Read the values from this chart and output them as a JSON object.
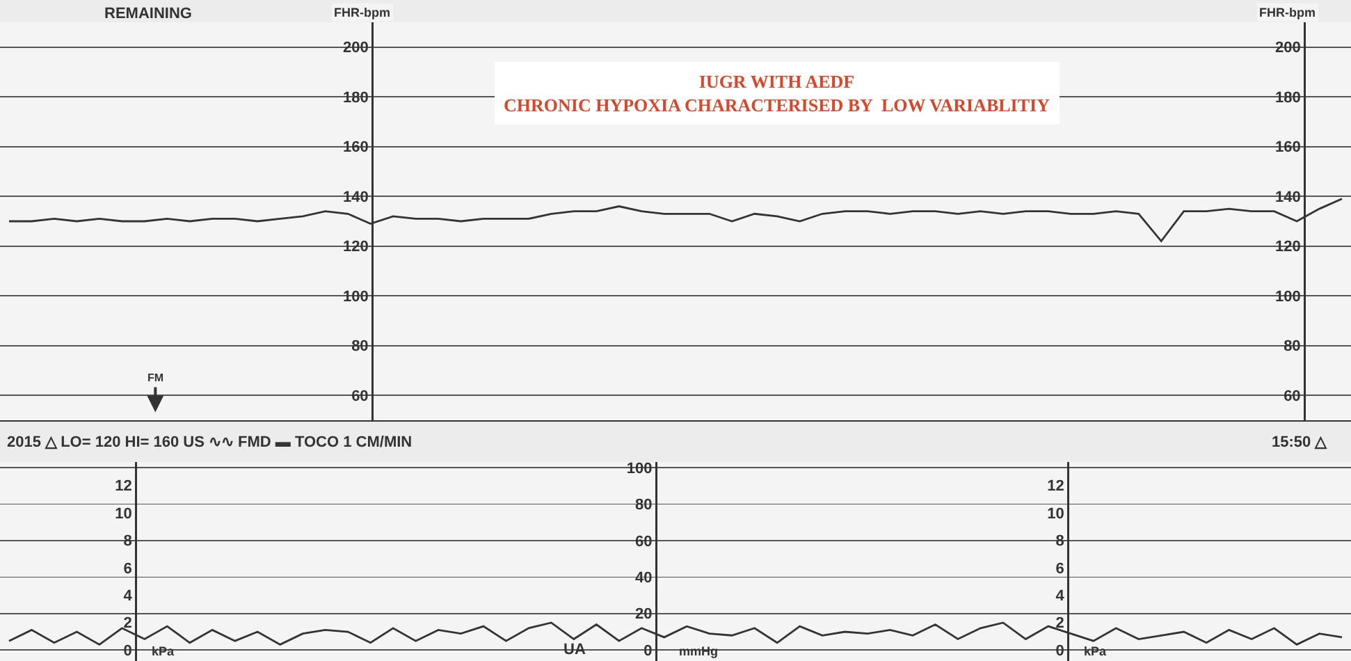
{
  "chart_data": [
    {
      "type": "line",
      "title": "IUGR WITH AEDF",
      "subtitle": "CHRONIC HYPOXIA CHARACTERISED BY  LOW VARIABLITIY",
      "ylabel": "FHR-bpm",
      "y2label": "FHR-bpm",
      "annotations": [
        "REMAINING",
        "FM"
      ],
      "categories": [
        null,
        null,
        null,
        null,
        null,
        null,
        null,
        null,
        null,
        null,
        null,
        null,
        null,
        null,
        null,
        null,
        null,
        null,
        null,
        null,
        null,
        null,
        null,
        null,
        null,
        null,
        null,
        null,
        null,
        null,
        null,
        null,
        null,
        null,
        null,
        null,
        null,
        null,
        null,
        null,
        null,
        null,
        null,
        null,
        null,
        null,
        null,
        null,
        null,
        null,
        null,
        null,
        null,
        null,
        null,
        null,
        null,
        null,
        null,
        null
      ],
      "series": [
        {
          "color": "#333333",
          "values": [
            130,
            130,
            131,
            130,
            131,
            130,
            130,
            131,
            130,
            131,
            131,
            130,
            131,
            132,
            134,
            133,
            129,
            132,
            131,
            131,
            130,
            131,
            131,
            131,
            133,
            134,
            134,
            136,
            134,
            133,
            133,
            133,
            130,
            133,
            132,
            130,
            133,
            134,
            134,
            133,
            134,
            134,
            133,
            134,
            133,
            134,
            134,
            133,
            133,
            134,
            133,
            122,
            134,
            134,
            135,
            134,
            134,
            130,
            135,
            139
          ]
        }
      ],
      "ylim": [
        50,
        210
      ],
      "yticks": [
        60,
        80,
        100,
        120,
        140,
        160,
        180,
        200
      ],
      "y2lim": [
        50,
        210
      ],
      "y2ticks": [
        60,
        80,
        100,
        120,
        140,
        160,
        180,
        200
      ],
      "grid": "y",
      "marker": "none",
      "line_style": "solid"
    },
    {
      "type": "line",
      "ylabel": "mmHg",
      "y2label": "kPa",
      "y3label": "kPa",
      "annotations": [
        "2015 △ LO= 120 HI= 160 US ∿∿ FMD ▬ TOCO 1 CM/MIN",
        "15:50 △",
        "UA"
      ],
      "categories": [
        null,
        null,
        null,
        null,
        null,
        null,
        null,
        null,
        null,
        null,
        null,
        null,
        null,
        null,
        null,
        null,
        null,
        null,
        null,
        null,
        null,
        null,
        null,
        null,
        null,
        null,
        null,
        null,
        null,
        null,
        null,
        null,
        null,
        null,
        null,
        null,
        null,
        null,
        null,
        null,
        null,
        null,
        null,
        null,
        null,
        null,
        null,
        null,
        null,
        null,
        null,
        null,
        null,
        null,
        null,
        null,
        null,
        null,
        null,
        null
      ],
      "series": [
        {
          "color": "#333333",
          "values": [
            5,
            11,
            4,
            10,
            3,
            12,
            6,
            13,
            4,
            11,
            5,
            10,
            3,
            9,
            11,
            10,
            4,
            12,
            5,
            11,
            9,
            13,
            5,
            12,
            15,
            6,
            14,
            5,
            12,
            7,
            13,
            9,
            8,
            12,
            4,
            13,
            8,
            10,
            9,
            11,
            8,
            14,
            6,
            12,
            15,
            6,
            13,
            9,
            5,
            12,
            6,
            8,
            10,
            4,
            11,
            6,
            12,
            3,
            9,
            7
          ]
        }
      ],
      "ylim": [
        -6,
        103
      ],
      "yticks": [
        0,
        20,
        40,
        60,
        80,
        100
      ],
      "y2lim": [
        -0.8,
        13.7
      ],
      "y2ticks": [
        0,
        2,
        4,
        6,
        8,
        10,
        12
      ],
      "y3lim": [
        -0.8,
        13.7
      ],
      "y3ticks": [
        0,
        2,
        4,
        6,
        8,
        10,
        12
      ],
      "grid": "y",
      "marker": "none",
      "line_style": "solid"
    }
  ]
}
